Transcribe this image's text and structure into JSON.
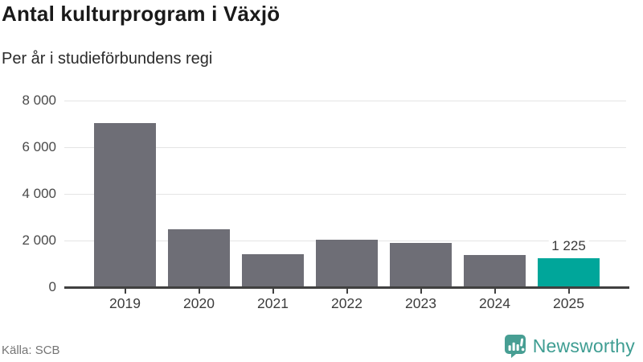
{
  "header": {
    "title": "Antal kulturprogram i Växjö",
    "subtitle": "Per år i studieförbundens regi"
  },
  "chart_data": {
    "type": "bar",
    "title": "Antal kulturprogram i Växjö",
    "subtitle": "Per år i studieförbundens regi",
    "categories": [
      "2019",
      "2020",
      "2021",
      "2022",
      "2023",
      "2024",
      "2025"
    ],
    "values": [
      7050,
      2470,
      1430,
      2020,
      1890,
      1370,
      1225
    ],
    "highlight_index": 6,
    "data_labels": [
      {
        "index": 6,
        "text": "1 225"
      }
    ],
    "ylim": [
      0,
      8000
    ],
    "yticks": [
      {
        "value": 0,
        "label": "0"
      },
      {
        "value": 2000,
        "label": "2 000"
      },
      {
        "value": 4000,
        "label": "4 000"
      },
      {
        "value": 6000,
        "label": "6 000"
      },
      {
        "value": 8000,
        "label": "8 000"
      }
    ],
    "xlabel": "",
    "ylabel": "",
    "grid": true,
    "legend": false,
    "bar_color": "#6E6E76",
    "highlight_color": "#00A69A"
  },
  "footer": {
    "source": "Källa: SCB",
    "brand": "Newsworthy"
  },
  "colors": {
    "bar": "#6E6E76",
    "highlight": "#00A69A",
    "brand_teal": "#3E9D92",
    "grid": "#E4E4E4",
    "axis": "#404040",
    "title": "#1A1A1A",
    "subtitle": "#2B2B2B",
    "source": "#757575"
  }
}
